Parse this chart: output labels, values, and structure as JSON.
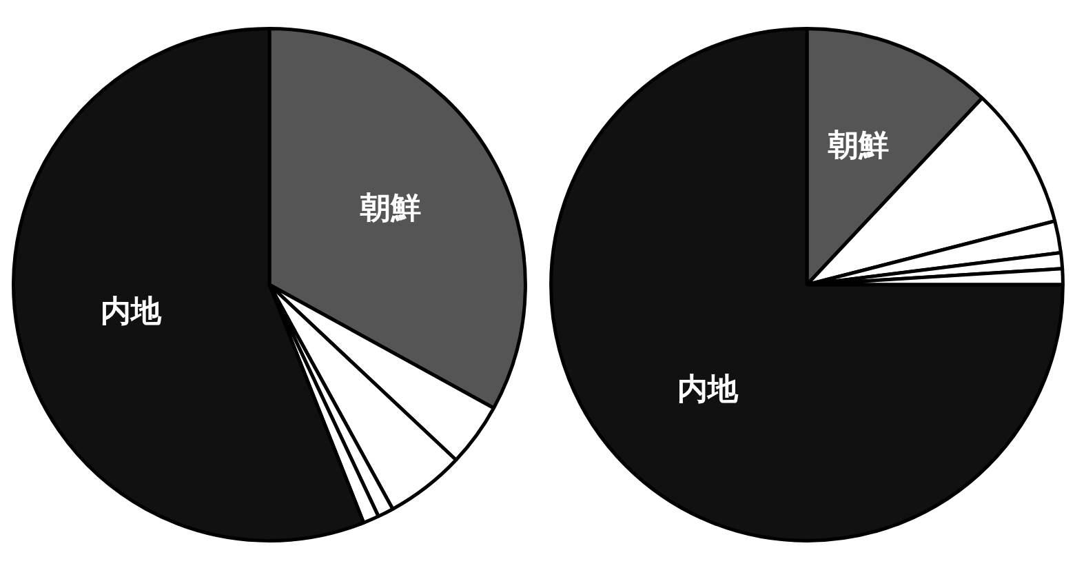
{
  "chart_data": [
    {
      "type": "pie",
      "categories": [
        "朝鮮",
        null,
        null,
        null,
        null,
        "内地"
      ],
      "values": [
        33,
        4,
        5,
        1,
        1,
        56
      ],
      "colors": [
        "#555555",
        "#ffffff",
        "#ffffff",
        "#ffffff",
        "#ffffff",
        "#111111"
      ]
    },
    {
      "type": "pie",
      "categories": [
        "朝鮮",
        null,
        null,
        null,
        null,
        "内地"
      ],
      "values": [
        12,
        9,
        2,
        1,
        1,
        75
      ],
      "colors": [
        "#555555",
        "#ffffff",
        "#ffffff",
        "#ffffff",
        "#ffffff",
        "#111111"
      ]
    }
  ]
}
